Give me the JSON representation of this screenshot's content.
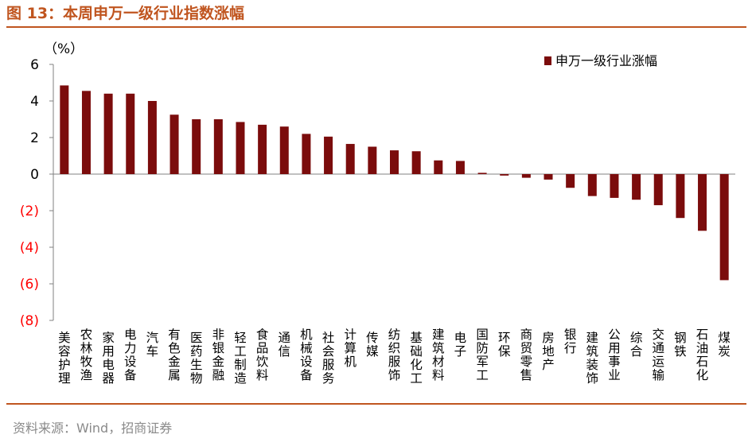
{
  "header": {
    "title": "图 13：本周申万一级行业指数涨幅"
  },
  "footer": {
    "source": "资料来源：Wind，招商证券"
  },
  "colors": {
    "accent": "#c0551f",
    "bar": "#7b0c0c",
    "negative_tick": "#ff0000",
    "axis": "#808080"
  },
  "chart_data": {
    "type": "bar",
    "title": "",
    "ylabel": "（%）",
    "xlabel": "",
    "legend": "申万一级行业涨幅",
    "legend_position": "top-right",
    "ylim": [
      -8,
      6
    ],
    "yticks": [
      6,
      4,
      2,
      0,
      -2,
      -4,
      -6,
      -8
    ],
    "ytick_labels": [
      "6",
      "4",
      "2",
      "0",
      "(2)",
      "(4)",
      "(6)",
      "(8)"
    ],
    "categories": [
      "美容护理",
      "农林牧渔",
      "家用电器",
      "电力设备",
      "汽车",
      "有色金属",
      "医药生物",
      "非银金融",
      "轻工制造",
      "食品饮料",
      "通信",
      "机械设备",
      "社会服务",
      "计算机",
      "传媒",
      "纺织服饰",
      "基础化工",
      "建筑材料",
      "电子",
      "国防军工",
      "环保",
      "商贸零售",
      "房地产",
      "银行",
      "建筑装饰",
      "公用事业",
      "综合",
      "交通运输",
      "钢铁",
      "石油石化",
      "煤炭"
    ],
    "values": [
      4.85,
      4.55,
      4.4,
      4.4,
      4.0,
      3.25,
      3.0,
      3.0,
      2.85,
      2.7,
      2.6,
      2.2,
      2.05,
      1.65,
      1.5,
      1.3,
      1.25,
      0.75,
      0.72,
      0.07,
      -0.08,
      -0.2,
      -0.3,
      -0.75,
      -1.2,
      -1.3,
      -1.4,
      -1.7,
      -2.4,
      -3.1,
      -5.8
    ]
  }
}
